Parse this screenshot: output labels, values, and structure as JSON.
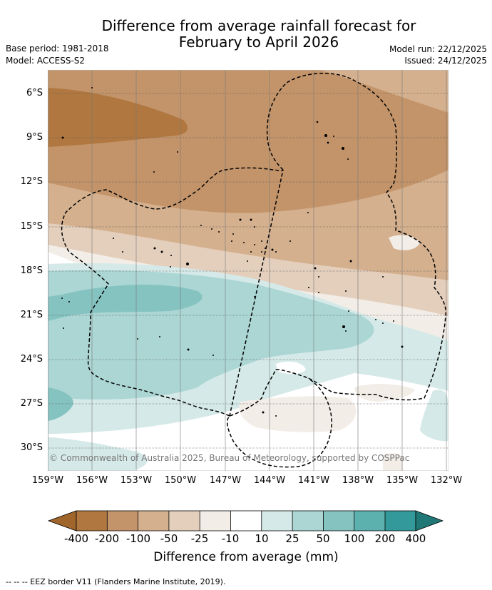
{
  "title": {
    "line1": "Difference from average rainfall forecast for",
    "line2": "February to April 2026"
  },
  "info": {
    "base_period": "Base period: 1981-2018",
    "model": "Model: ACCESS-S2",
    "model_run": "Model run: 22/12/2025",
    "issued": "Issued: 24/12/2025"
  },
  "map": {
    "latitudes": [
      "6°S",
      "9°S",
      "12°S",
      "15°S",
      "18°S",
      "21°S",
      "24°S",
      "27°S",
      "30°S"
    ],
    "longitudes": [
      "159°W",
      "156°W",
      "153°W",
      "150°W",
      "147°W",
      "144°W",
      "141°W",
      "138°W",
      "135°W",
      "132°W"
    ],
    "copyright": "© Commonwealth of Australia 2025, Bureau of Meteorology, supported by COSPPac"
  },
  "colorbar": {
    "labels": [
      "-400",
      "-200",
      "-100",
      "-50",
      "-25",
      "-10",
      "10",
      "25",
      "50",
      "100",
      "200",
      "400"
    ],
    "colors": [
      "#a0652a",
      "#b07840",
      "#c3946a",
      "#d4b08e",
      "#e4cfbd",
      "#f2ede7",
      "#ffffff",
      "#d5eae8",
      "#abd6d4",
      "#85c3c1",
      "#5cb0ad",
      "#34999a",
      "#1f7876"
    ],
    "title": "Difference from average (mm)"
  },
  "footer": {
    "legend": "-- -- -- EEZ border V11 (Flanders Marine Institute, 2019)."
  }
}
